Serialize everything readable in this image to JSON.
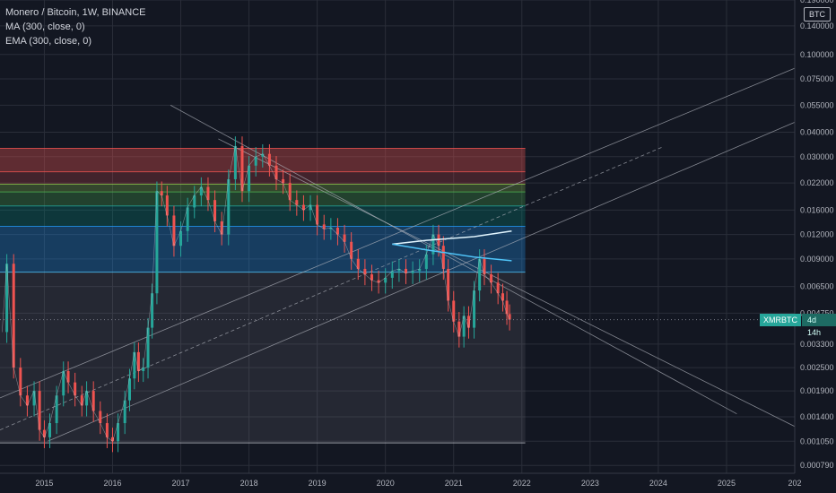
{
  "legend": {
    "title": "Monero / Bitcoin, 1W, BINANCE",
    "ma": "MA (300, close, 0)",
    "ema": "EMA (300, close, 0)"
  },
  "axis": {
    "unit_label": "BTC",
    "price_ticks": [
      "0.190000",
      "0.140000",
      "0.100000",
      "0.075000",
      "0.055000",
      "0.040000",
      "0.030000",
      "0.022000",
      "0.016000",
      "0.012000",
      "0.009000",
      "0.006500",
      "0.004750",
      "0.003300",
      "0.002500",
      "0.001900",
      "0.001400",
      "0.001050",
      "0.000790"
    ],
    "year_ticks": [
      "2015",
      "2016",
      "2017",
      "2018",
      "2019",
      "2020",
      "2021",
      "2022",
      "2023",
      "2024",
      "2025",
      "202"
    ]
  },
  "price_label": {
    "symbol": "XMRBTC",
    "countdown": "4d 14h"
  },
  "colors": {
    "background": "#131722",
    "up": "#26a69a",
    "down": "#ef5350",
    "accent_line": "#4fc3f7"
  },
  "chart_data": {
    "type": "candlestick",
    "x_unit": "year",
    "y_scale": "log",
    "ylim": [
      0.00072,
      0.19
    ],
    "xlim": [
      2014.35,
      2026.0
    ],
    "grid": true,
    "fib_levels": [
      0.0331,
      0.0251,
      0.0217,
      0.0198,
      0.0168,
      0.0132,
      0.0077,
      0.00103
    ],
    "close_series": [
      [
        2014.38,
        0.0038
      ],
      [
        2014.45,
        0.0085
      ],
      [
        2014.55,
        0.0025
      ],
      [
        2014.65,
        0.0018
      ],
      [
        2014.75,
        0.0016
      ],
      [
        2014.85,
        0.0019
      ],
      [
        2014.93,
        0.0012
      ],
      [
        2015.0,
        0.0011
      ],
      [
        2015.08,
        0.0013
      ],
      [
        2015.18,
        0.0018
      ],
      [
        2015.28,
        0.0024
      ],
      [
        2015.35,
        0.0021
      ],
      [
        2015.45,
        0.0018
      ],
      [
        2015.55,
        0.0016
      ],
      [
        2015.62,
        0.0019
      ],
      [
        2015.72,
        0.0015
      ],
      [
        2015.82,
        0.0013
      ],
      [
        2015.92,
        0.0011
      ],
      [
        2016.0,
        0.00105
      ],
      [
        2016.08,
        0.0013
      ],
      [
        2016.18,
        0.0017
      ],
      [
        2016.25,
        0.0022
      ],
      [
        2016.32,
        0.003
      ],
      [
        2016.38,
        0.0024
      ],
      [
        2016.45,
        0.0025
      ],
      [
        2016.52,
        0.004
      ],
      [
        2016.58,
        0.006
      ],
      [
        2016.65,
        0.02
      ],
      [
        2016.72,
        0.019
      ],
      [
        2016.8,
        0.015
      ],
      [
        2016.9,
        0.0105
      ],
      [
        2017.0,
        0.0125
      ],
      [
        2017.1,
        0.0165
      ],
      [
        2017.2,
        0.019
      ],
      [
        2017.3,
        0.021
      ],
      [
        2017.4,
        0.018
      ],
      [
        2017.5,
        0.014
      ],
      [
        2017.6,
        0.012
      ],
      [
        2017.7,
        0.023
      ],
      [
        2017.8,
        0.034
      ],
      [
        2017.9,
        0.02
      ],
      [
        2018.0,
        0.027
      ],
      [
        2018.1,
        0.03
      ],
      [
        2018.2,
        0.031
      ],
      [
        2018.3,
        0.027
      ],
      [
        2018.4,
        0.023
      ],
      [
        2018.5,
        0.022
      ],
      [
        2018.6,
        0.018
      ],
      [
        2018.7,
        0.017
      ],
      [
        2018.8,
        0.016
      ],
      [
        2018.9,
        0.017
      ],
      [
        2019.0,
        0.0135
      ],
      [
        2019.1,
        0.0128
      ],
      [
        2019.2,
        0.013
      ],
      [
        2019.3,
        0.012
      ],
      [
        2019.4,
        0.011
      ],
      [
        2019.5,
        0.009
      ],
      [
        2019.6,
        0.008
      ],
      [
        2019.7,
        0.0075
      ],
      [
        2019.8,
        0.007
      ],
      [
        2019.9,
        0.0068
      ],
      [
        2020.0,
        0.0072
      ],
      [
        2020.1,
        0.0078
      ],
      [
        2020.2,
        0.008
      ],
      [
        2020.3,
        0.0076
      ],
      [
        2020.4,
        0.0078
      ],
      [
        2020.5,
        0.008
      ],
      [
        2020.6,
        0.0095
      ],
      [
        2020.7,
        0.012
      ],
      [
        2020.78,
        0.0105
      ],
      [
        2020.85,
        0.008
      ],
      [
        2020.92,
        0.0055
      ],
      [
        2021.0,
        0.0043
      ],
      [
        2021.08,
        0.0036
      ],
      [
        2021.15,
        0.0046
      ],
      [
        2021.22,
        0.004
      ],
      [
        2021.3,
        0.0062
      ],
      [
        2021.38,
        0.009
      ],
      [
        2021.45,
        0.0075
      ],
      [
        2021.55,
        0.0068
      ],
      [
        2021.65,
        0.006
      ],
      [
        2021.72,
        0.0055
      ],
      [
        2021.78,
        0.0047
      ],
      [
        2021.82,
        0.0044
      ]
    ],
    "moving_average_segments": [
      [
        [
          2020.1,
          0.0107
        ],
        [
          2020.6,
          0.0112
        ],
        [
          2021.3,
          0.0117
        ],
        [
          2021.85,
          0.0125
        ]
      ],
      [
        [
          2020.1,
          0.0107
        ],
        [
          2020.6,
          0.01
        ],
        [
          2021.3,
          0.0092
        ],
        [
          2021.85,
          0.0088
        ]
      ]
    ]
  }
}
